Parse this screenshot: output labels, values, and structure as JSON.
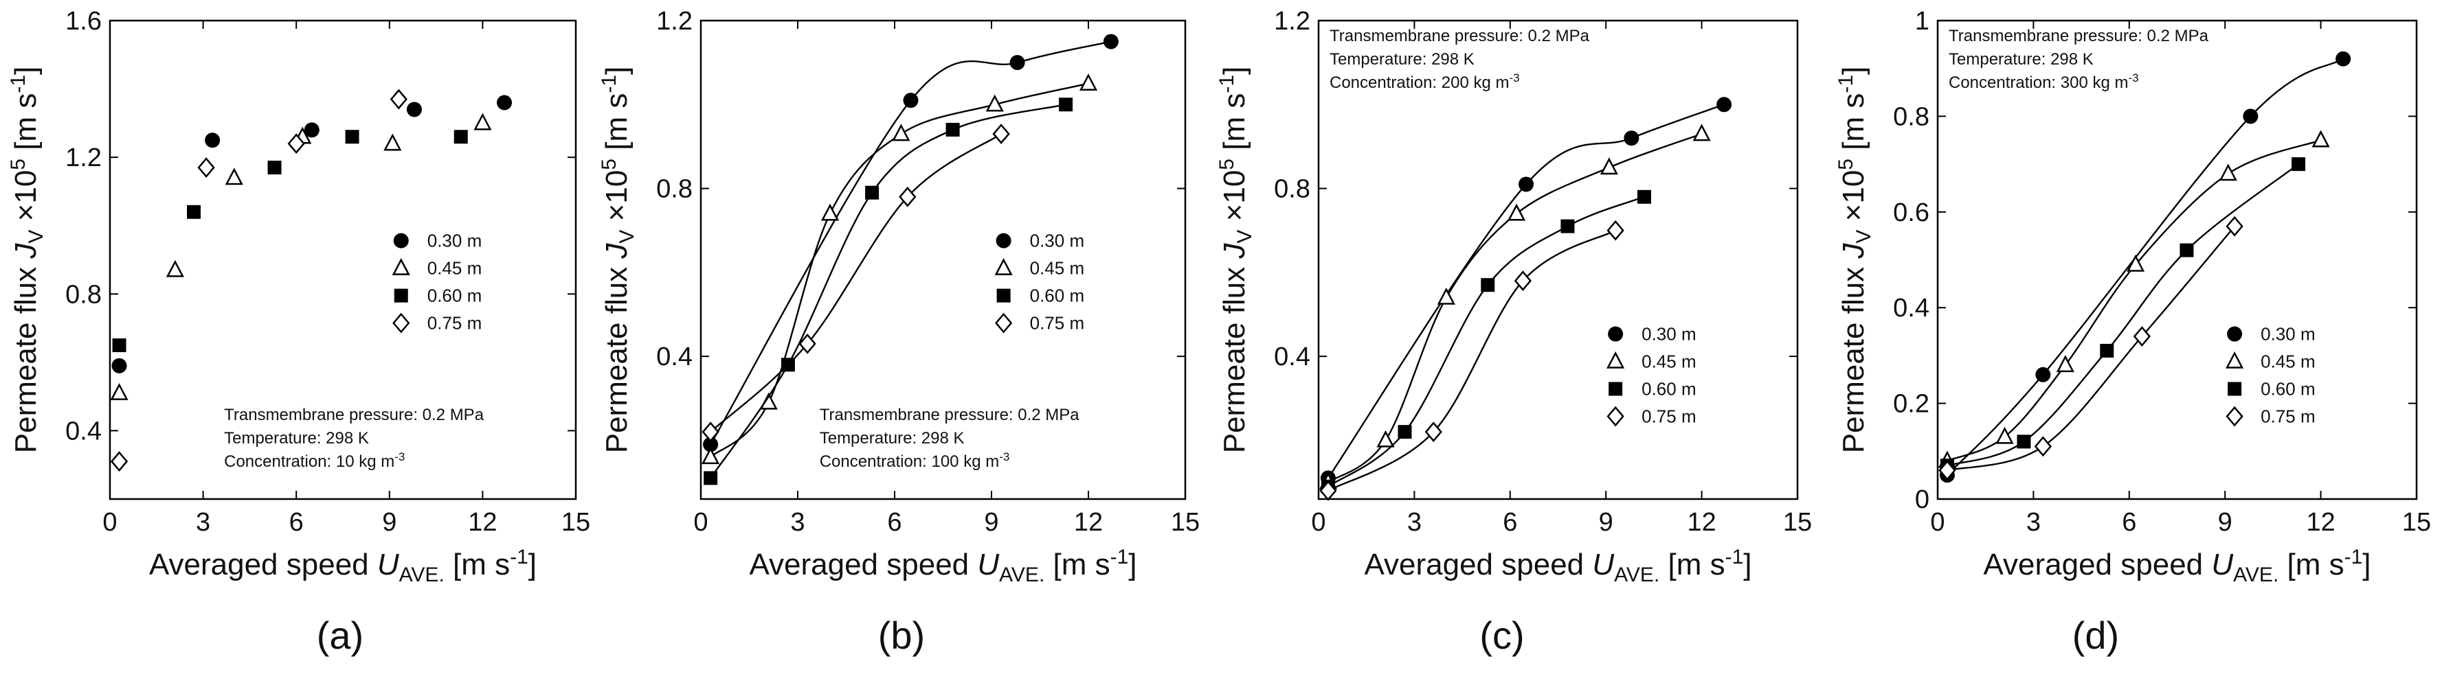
{
  "legend_labels": [
    "0.30 m",
    "0.45 m",
    "0.60 m",
    "0.75 m"
  ],
  "chart_data": [
    {
      "type": "scatter",
      "panel_label": "(a)",
      "xlabel": "Averaged speed U_AVE. [m s⁻¹]",
      "ylabel": "Permeate flux J_V ×10⁵ [m s⁻¹]",
      "xlim": [
        0,
        15
      ],
      "ylim": [
        0.2,
        1.6
      ],
      "xticks": [
        0,
        3,
        6,
        9,
        12,
        15
      ],
      "yticks": [
        0.4,
        0.8,
        1.2,
        1.6
      ],
      "yticklabels": [
        "0.4",
        "0.8",
        "1.2",
        "1.6"
      ],
      "curves": false,
      "legend_position": "right-middle",
      "annotation_position": "bottom-right",
      "annotations": [
        "Transmembrane pressure: 0.2 MPa",
        "Temperature: 298 K",
        "Concentration: 10 kg m⁻³"
      ],
      "series": [
        {
          "name": "0.30 m",
          "marker": "filled-circle",
          "x": [
            0.3,
            3.3,
            6.5,
            9.8,
            12.7
          ],
          "y": [
            0.59,
            1.25,
            1.28,
            1.34,
            1.36
          ]
        },
        {
          "name": "0.45 m",
          "marker": "open-triangle",
          "x": [
            0.3,
            2.1,
            4.0,
            6.2,
            9.1,
            12.0
          ],
          "y": [
            0.51,
            0.87,
            1.14,
            1.26,
            1.24,
            1.3
          ]
        },
        {
          "name": "0.60 m",
          "marker": "filled-square",
          "x": [
            0.3,
            2.7,
            5.3,
            7.8,
            11.3
          ],
          "y": [
            0.65,
            1.04,
            1.17,
            1.26,
            1.26
          ]
        },
        {
          "name": "0.75 m",
          "marker": "open-diamond",
          "x": [
            0.3,
            3.1,
            6.0,
            9.3
          ],
          "y": [
            0.31,
            1.17,
            1.24,
            1.37
          ]
        }
      ]
    },
    {
      "type": "line",
      "panel_label": "(b)",
      "xlabel": "Averaged speed U_AVE. [m s⁻¹]",
      "ylabel": "Permeate flux J_V ×10⁵ [m s⁻¹]",
      "xlim": [
        0,
        15
      ],
      "ylim": [
        0.06,
        1.2
      ],
      "xticks": [
        0,
        3,
        6,
        9,
        12,
        15
      ],
      "yticks": [
        0.4,
        0.8,
        1.2
      ],
      "yticklabels": [
        "0.4",
        "0.8",
        "1.2"
      ],
      "curves": true,
      "legend_position": "right-middle",
      "annotation_position": "bottom-right",
      "annotations": [
        "Transmembrane pressure: 0.2 MPa",
        "Temperature: 298 K",
        "Concentration: 100 kg m⁻³"
      ],
      "series": [
        {
          "name": "0.30 m",
          "marker": "filled-circle",
          "x": [
            0.3,
            6.5,
            9.8,
            12.7
          ],
          "y": [
            0.19,
            1.01,
            1.1,
            1.15
          ]
        },
        {
          "name": "0.45 m",
          "marker": "open-triangle",
          "x": [
            0.3,
            2.1,
            4.0,
            6.2,
            9.1,
            12.0
          ],
          "y": [
            0.16,
            0.29,
            0.74,
            0.93,
            1.0,
            1.05
          ]
        },
        {
          "name": "0.60 m",
          "marker": "filled-square",
          "x": [
            0.3,
            2.7,
            5.3,
            7.8,
            11.3
          ],
          "y": [
            0.11,
            0.38,
            0.79,
            0.94,
            1.0
          ]
        },
        {
          "name": "0.75 m",
          "marker": "open-diamond",
          "x": [
            0.3,
            3.3,
            6.4,
            9.3
          ],
          "y": [
            0.22,
            0.43,
            0.78,
            0.93
          ]
        }
      ]
    },
    {
      "type": "line",
      "panel_label": "(c)",
      "xlabel": "Averaged speed U_AVE. [m s⁻¹]",
      "ylabel": "Permeate flux J_V ×10⁵ [m s⁻¹]",
      "xlim": [
        0,
        15
      ],
      "ylim": [
        0.06,
        1.2
      ],
      "xticks": [
        0,
        3,
        6,
        9,
        12,
        15
      ],
      "yticks": [
        0.4,
        0.8,
        1.2
      ],
      "yticklabels": [
        "0.4",
        "0.8",
        "1.2"
      ],
      "curves": true,
      "legend_position": "bottom-right",
      "annotation_position": "top-left",
      "annotations": [
        "Transmembrane pressure: 0.2 MPa",
        "Temperature: 298 K",
        "Concentration: 200 kg m⁻³"
      ],
      "series": [
        {
          "name": "0.30 m",
          "marker": "filled-circle",
          "x": [
            0.3,
            6.5,
            9.8,
            12.7
          ],
          "y": [
            0.11,
            0.81,
            0.92,
            1.0
          ]
        },
        {
          "name": "0.45 m",
          "marker": "open-triangle",
          "x": [
            0.3,
            2.1,
            4.0,
            6.2,
            9.1,
            12.0
          ],
          "y": [
            0.1,
            0.2,
            0.54,
            0.74,
            0.85,
            0.93
          ]
        },
        {
          "name": "0.60 m",
          "marker": "filled-square",
          "x": [
            0.3,
            2.7,
            5.3,
            7.8,
            10.2
          ],
          "y": [
            0.09,
            0.22,
            0.57,
            0.71,
            0.78
          ]
        },
        {
          "name": "0.75 m",
          "marker": "open-diamond",
          "x": [
            0.3,
            3.6,
            6.4,
            9.3
          ],
          "y": [
            0.08,
            0.22,
            0.58,
            0.7
          ]
        }
      ]
    },
    {
      "type": "line",
      "panel_label": "(d)",
      "xlabel": "Averaged speed U_AVE. [m s⁻¹]",
      "ylabel": "Permeate flux J_V ×10⁵ [m s⁻¹]",
      "xlim": [
        0,
        15
      ],
      "ylim": [
        0,
        1.0
      ],
      "xticks": [
        0,
        3,
        6,
        9,
        12,
        15
      ],
      "yticks": [
        0,
        0.2,
        0.4,
        0.6,
        0.8,
        1.0
      ],
      "yticklabels": [
        "0",
        "0.2",
        "0.4",
        "0.6",
        "0.8",
        "1"
      ],
      "curves": true,
      "legend_position": "bottom-right",
      "annotation_position": "top-left",
      "annotations": [
        "Transmembrane pressure: 0.2 MPa",
        "Temperature: 298 K",
        "Concentration: 300 kg m⁻³"
      ],
      "series": [
        {
          "name": "0.30 m",
          "marker": "filled-circle",
          "x": [
            0.3,
            3.3,
            9.8,
            12.7
          ],
          "y": [
            0.05,
            0.26,
            0.8,
            0.92
          ]
        },
        {
          "name": "0.45 m",
          "marker": "open-triangle",
          "x": [
            0.3,
            2.1,
            4.0,
            6.2,
            9.1,
            12.0
          ],
          "y": [
            0.08,
            0.13,
            0.28,
            0.49,
            0.68,
            0.75
          ]
        },
        {
          "name": "0.60 m",
          "marker": "filled-square",
          "x": [
            0.3,
            2.7,
            5.3,
            7.8,
            11.3
          ],
          "y": [
            0.07,
            0.12,
            0.31,
            0.52,
            0.7
          ]
        },
        {
          "name": "0.75 m",
          "marker": "open-diamond",
          "x": [
            0.3,
            3.3,
            6.4,
            9.3
          ],
          "y": [
            0.06,
            0.11,
            0.34,
            0.57
          ]
        }
      ]
    }
  ]
}
